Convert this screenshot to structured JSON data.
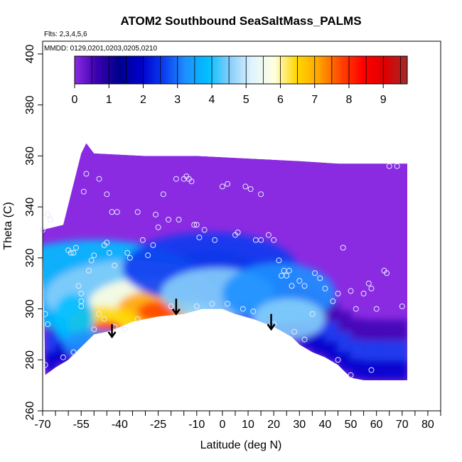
{
  "chart_data": {
    "type": "heatmap",
    "title": "ATOM2 Southbound SeaSaltMass_PALMS",
    "subtitle_flights": "Flts: 2,3,4,5,6",
    "subtitle_dates": "MMDD: 0129,0201,0203,0205,0210",
    "xlabel": "Latitude (deg N)",
    "ylabel": "Theta (C)",
    "xlim": [
      -70,
      85
    ],
    "ylim": [
      260,
      405
    ],
    "x_ticks": [
      -70,
      -55,
      -40,
      -25,
      -10,
      0,
      10,
      20,
      30,
      40,
      50,
      60,
      70,
      80
    ],
    "x_tick_labels": [
      "-70",
      "-55",
      "-40",
      "-25",
      "-10",
      "0",
      "10",
      "20",
      "30",
      "40",
      "50",
      "60",
      "70",
      "80"
    ],
    "x_minor_ticks": [
      -65,
      -60,
      -50,
      -45,
      -35,
      -30,
      -20,
      -15,
      -5,
      5,
      15,
      25,
      35,
      45,
      55,
      65,
      75,
      85
    ],
    "y_ticks": [
      260,
      280,
      300,
      320,
      340,
      360,
      380,
      400
    ],
    "y_tick_labels": [
      "260",
      "280",
      "300",
      "320",
      "340",
      "360",
      "380",
      "400"
    ],
    "colorbar": {
      "ticks": [
        0,
        1,
        2,
        3,
        4,
        5,
        6,
        7,
        8,
        9
      ],
      "tick_labels": [
        "0",
        "1",
        "2",
        "3",
        "4",
        "5",
        "6",
        "7",
        "8",
        "9"
      ],
      "range": [
        0,
        9.7
      ],
      "colors": [
        "#8a2be2",
        "#3a00b0",
        "#00008b",
        "#0000cd",
        "#0a3cf0",
        "#1e90ff",
        "#00bfff",
        "#87cefa",
        "#e0f4ff",
        "#ffffe0",
        "#ffd700",
        "#ffa500",
        "#ff4500",
        "#ff0000",
        "#dd0000",
        "#a52a2a"
      ]
    },
    "domain_top": [
      [
        -70,
        331
      ],
      [
        -62,
        333
      ],
      [
        -55,
        361
      ],
      [
        -53,
        365
      ],
      [
        -50,
        361
      ],
      [
        -30,
        360
      ],
      [
        -10,
        360
      ],
      [
        10,
        359
      ],
      [
        30,
        358
      ],
      [
        45,
        357
      ],
      [
        60,
        357
      ],
      [
        72,
        357
      ]
    ],
    "surface_bottom": [
      [
        -69,
        274
      ],
      [
        -65,
        277
      ],
      [
        -60,
        280
      ],
      [
        -55,
        285
      ],
      [
        -50,
        290
      ],
      [
        -45,
        291
      ],
      [
        -42,
        292
      ],
      [
        -35,
        295
      ],
      [
        -25,
        297
      ],
      [
        -15,
        298
      ],
      [
        -8,
        300
      ],
      [
        0,
        300
      ],
      [
        5,
        298
      ],
      [
        12,
        296
      ],
      [
        20,
        293
      ],
      [
        27,
        289
      ],
      [
        30,
        286
      ],
      [
        35,
        283
      ],
      [
        40,
        281
      ],
      [
        45,
        278
      ],
      [
        50,
        273
      ],
      [
        55,
        272
      ],
      [
        60,
        272
      ],
      [
        72,
        272
      ]
    ],
    "flight_points": [
      [
        -70,
        331
      ],
      [
        -69,
        298
      ],
      [
        -68,
        294
      ],
      [
        -68,
        337
      ],
      [
        -67,
        335
      ],
      [
        -60,
        323
      ],
      [
        -59,
        322
      ],
      [
        -58,
        322
      ],
      [
        -57,
        324
      ],
      [
        -56,
        309
      ],
      [
        -55,
        306
      ],
      [
        -55,
        303
      ],
      [
        -55,
        301
      ],
      [
        -54,
        346
      ],
      [
        -53,
        353
      ],
      [
        -52,
        315
      ],
      [
        -51,
        319
      ],
      [
        -50,
        321
      ],
      [
        -48,
        351
      ],
      [
        -46,
        325
      ],
      [
        -45,
        345
      ],
      [
        -45,
        326
      ],
      [
        -44,
        322
      ],
      [
        -43,
        338
      ],
      [
        -42,
        317
      ],
      [
        -41,
        338
      ],
      [
        -37,
        322
      ],
      [
        -36,
        320
      ],
      [
        -33,
        338
      ],
      [
        -31,
        327
      ],
      [
        -29,
        321
      ],
      [
        -27,
        325
      ],
      [
        -26,
        337
      ],
      [
        -25,
        332
      ],
      [
        -23,
        345
      ],
      [
        -21,
        335
      ],
      [
        -18,
        351
      ],
      [
        -17,
        335
      ],
      [
        -15,
        351
      ],
      [
        -14,
        352
      ],
      [
        -13,
        351
      ],
      [
        -12,
        350
      ],
      [
        -11,
        333
      ],
      [
        -10,
        333
      ],
      [
        -9,
        328
      ],
      [
        -7,
        331
      ],
      [
        -3,
        327
      ],
      [
        0,
        348
      ],
      [
        2,
        349
      ],
      [
        5,
        329
      ],
      [
        6,
        330
      ],
      [
        9,
        348
      ],
      [
        11,
        347
      ],
      [
        13,
        327
      ],
      [
        15,
        345
      ],
      [
        15,
        327
      ],
      [
        18,
        329
      ],
      [
        20,
        327
      ],
      [
        22,
        319
      ],
      [
        23,
        313
      ],
      [
        24,
        315
      ],
      [
        25,
        313
      ],
      [
        26,
        315
      ],
      [
        27,
        309
      ],
      [
        30,
        311
      ],
      [
        32,
        309
      ],
      [
        35,
        298
      ],
      [
        36,
        314
      ],
      [
        38,
        312
      ],
      [
        40,
        308
      ],
      [
        43,
        303
      ],
      [
        45,
        306
      ],
      [
        47,
        324
      ],
      [
        50,
        307
      ],
      [
        52,
        300
      ],
      [
        55,
        306
      ],
      [
        57,
        310
      ],
      [
        58,
        308
      ],
      [
        60,
        300
      ],
      [
        63,
        315
      ],
      [
        64,
        314
      ],
      [
        65,
        356
      ],
      [
        68,
        356
      ],
      [
        70,
        301
      ],
      [
        -69,
        278
      ],
      [
        -62,
        281
      ],
      [
        -58,
        283
      ],
      [
        -50,
        292
      ],
      [
        -48,
        298
      ],
      [
        -46,
        296
      ],
      [
        -42,
        293
      ],
      [
        -38,
        292
      ],
      [
        -33,
        296
      ],
      [
        -20,
        301
      ],
      [
        -10,
        301
      ],
      [
        -4,
        302
      ],
      [
        2,
        302
      ],
      [
        8,
        300
      ],
      [
        12,
        299
      ],
      [
        20,
        294
      ],
      [
        28,
        291
      ],
      [
        32,
        288
      ],
      [
        45,
        280
      ],
      [
        50,
        274
      ],
      [
        58,
        276
      ]
    ],
    "arrows": [
      [
        -43,
        294,
        289
      ],
      [
        -18,
        304,
        298
      ],
      [
        19,
        298,
        292
      ]
    ]
  }
}
